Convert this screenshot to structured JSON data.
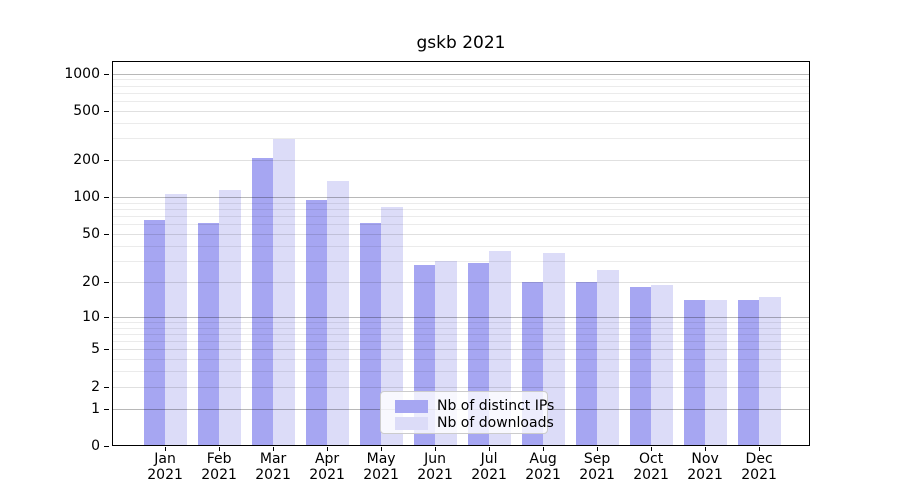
{
  "title": "gskb 2021",
  "legend": {
    "items": [
      {
        "label": "Nb of distinct IPs",
        "series_key": "distinct_ips"
      },
      {
        "label": "Nb of downloads",
        "series_key": "downloads"
      }
    ],
    "position": "lower center inside plot"
  },
  "colors": {
    "distinct_ips": "#a6a6f2",
    "downloads": "#dcdcf8",
    "grid_major": "#b8b8b8",
    "grid_labeled": "#e0e0e0",
    "grid_minor": "#ebebeb",
    "axis": "#000000",
    "background": "#ffffff"
  },
  "y_axis": {
    "tick_labels": [
      "1000",
      "500",
      "200",
      "100",
      "50",
      "20",
      "10",
      "5",
      "2",
      "1",
      "0"
    ],
    "ticks": [
      1000,
      500,
      200,
      100,
      50,
      20,
      10,
      5,
      2,
      1,
      0
    ]
  },
  "x_axis": {
    "months": [
      "Jan",
      "Feb",
      "Mar",
      "Apr",
      "May",
      "Jun",
      "Jul",
      "Aug",
      "Sep",
      "Oct",
      "Nov",
      "Dec"
    ],
    "year": "2021"
  },
  "chart_data": {
    "type": "bar",
    "title": "gskb 2021",
    "categories": [
      "Jan 2021",
      "Feb 2021",
      "Mar 2021",
      "Apr 2021",
      "May 2021",
      "Jun 2021",
      "Jul 2021",
      "Aug 2021",
      "Sep 2021",
      "Oct 2021",
      "Nov 2021",
      "Dec 2021"
    ],
    "series": [
      {
        "name": "Nb of distinct IPs",
        "color_key": "distinct_ips",
        "values": [
          65,
          62,
          207,
          95,
          62,
          28,
          29,
          20,
          20,
          18,
          14,
          14
        ]
      },
      {
        "name": "Nb of downloads",
        "color_key": "downloads",
        "values": [
          107,
          114,
          295,
          135,
          84,
          30,
          36,
          35,
          25,
          19,
          14,
          15
        ]
      }
    ],
    "xlabel": "",
    "ylabel": "",
    "y_scale": "log10(value+1)",
    "y_ticks": [
      0,
      1,
      2,
      5,
      10,
      20,
      50,
      100,
      200,
      500,
      1000
    ],
    "ylim": [
      0,
      1265
    ],
    "grid": "horizontal major + minor",
    "legend_position": "lower center inside plot"
  }
}
